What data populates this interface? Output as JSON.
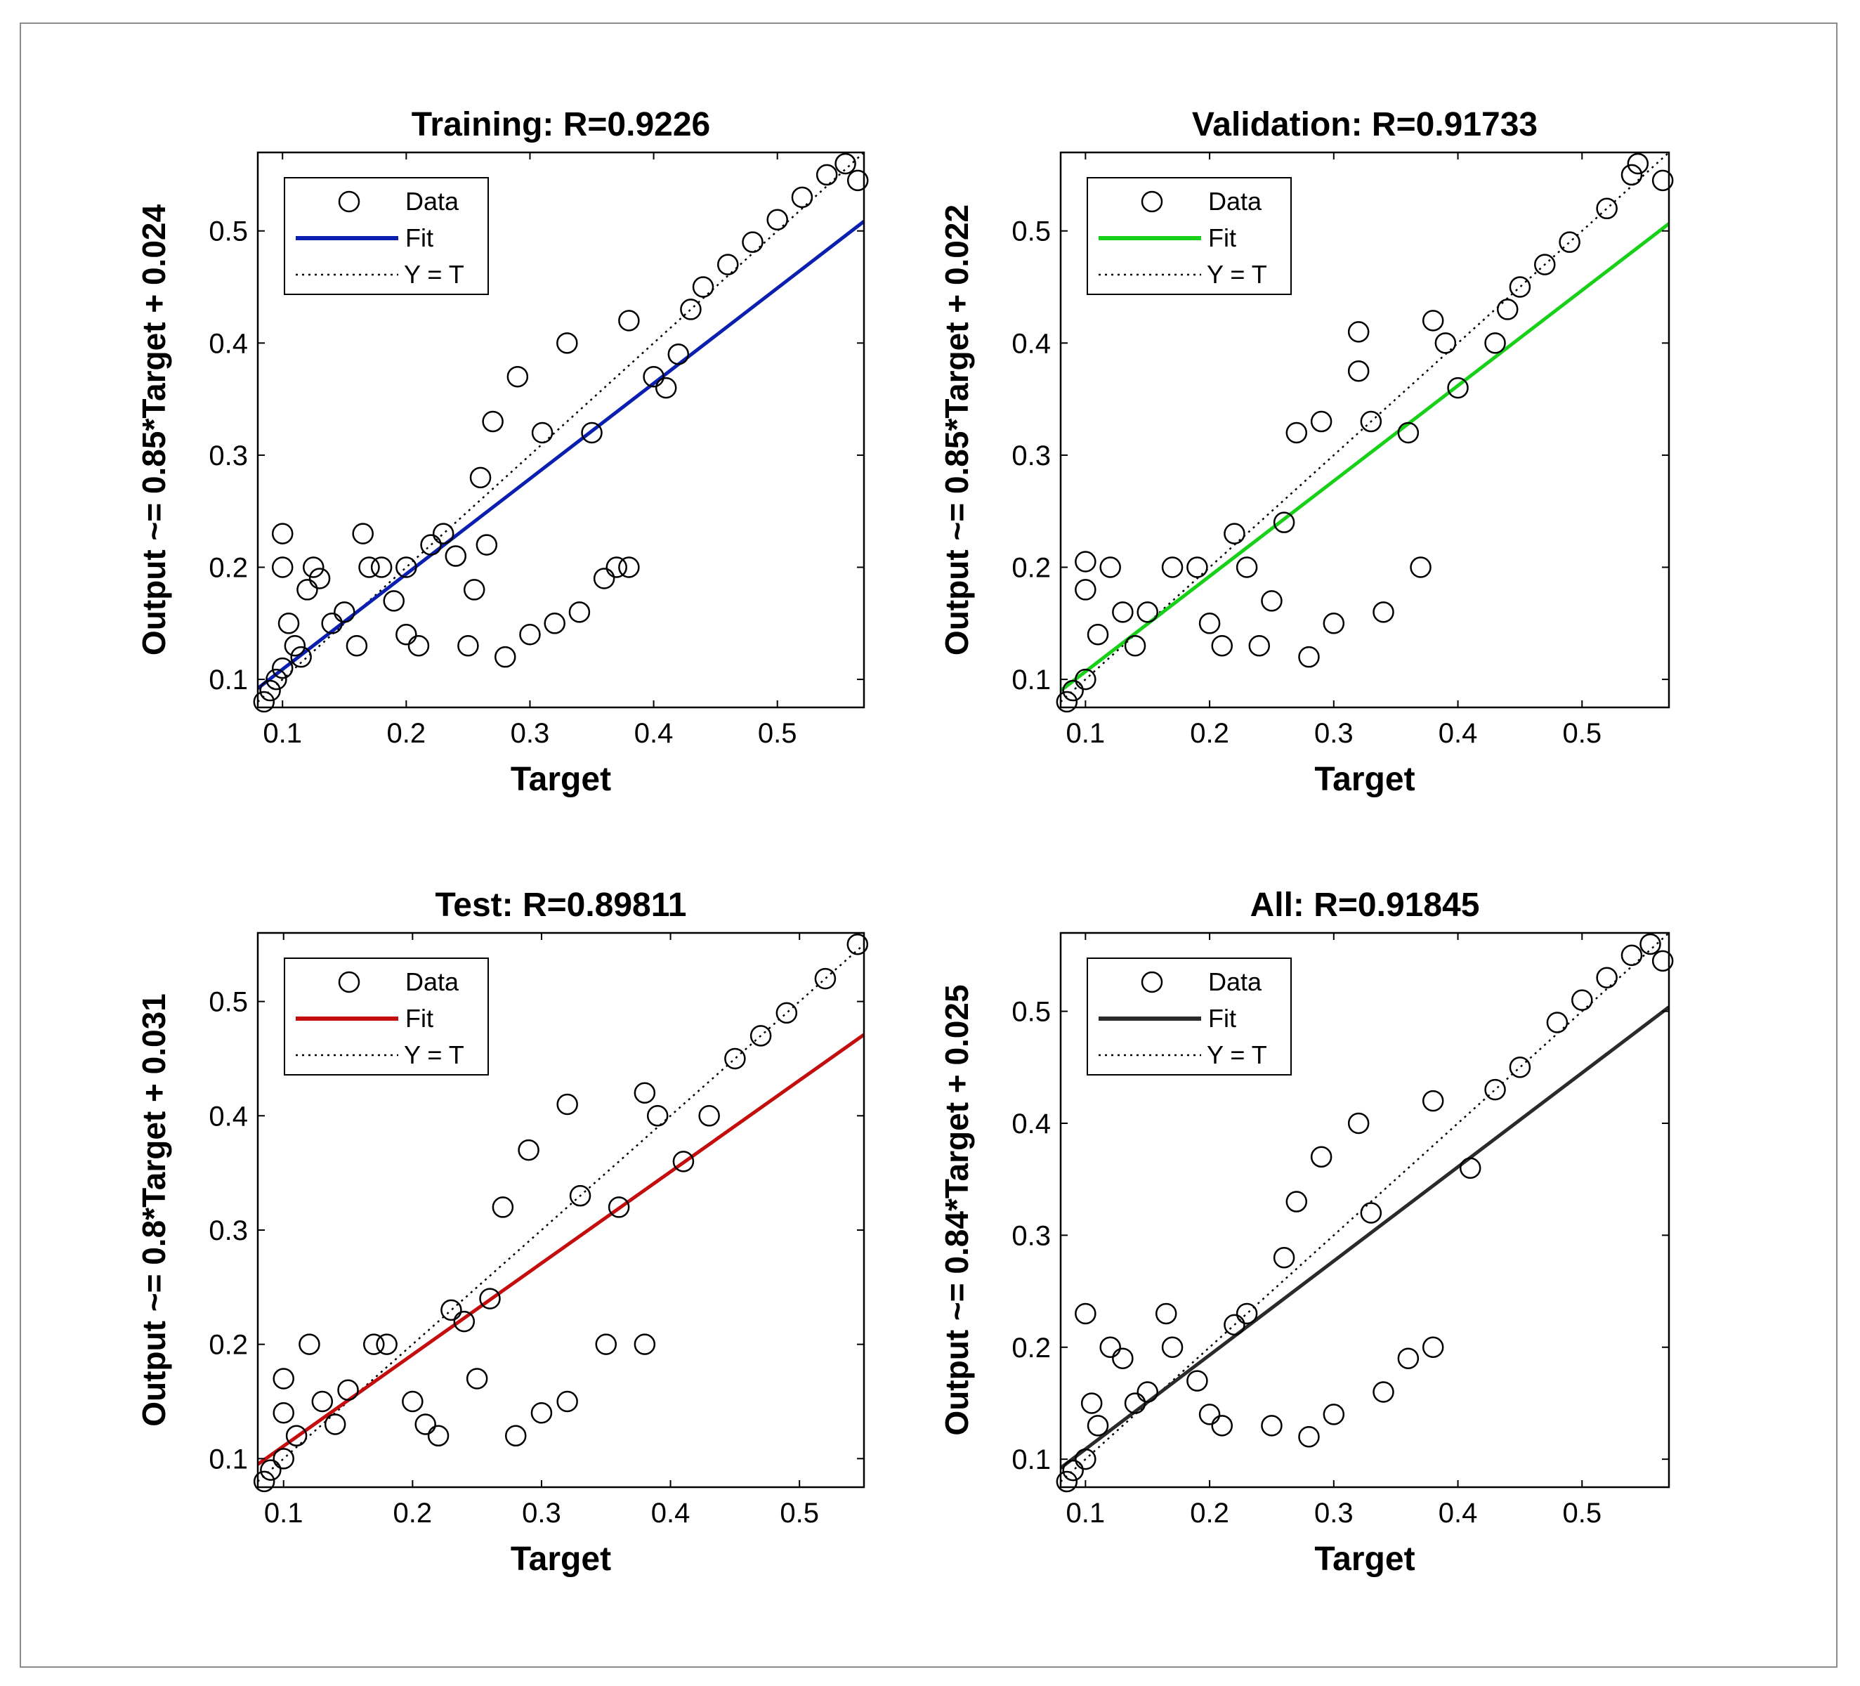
{
  "chart_data": [
    {
      "id": "training",
      "type": "scatter",
      "title": "Training: R=0.9226",
      "xlabel": "Target",
      "ylabel": "Output ~= 0.85*Target + 0.024",
      "xlim": [
        0.08,
        0.57
      ],
      "ylim": [
        0.075,
        0.57
      ],
      "xticks": [
        0.1,
        0.2,
        0.3,
        0.4,
        0.5
      ],
      "yticks": [
        0.1,
        0.2,
        0.3,
        0.4,
        0.5
      ],
      "fit": {
        "slope": 0.85,
        "intercept": 0.024,
        "color": "#0a1fb0"
      },
      "legend": {
        "entries": [
          "Data",
          "Fit",
          "Y = T"
        ],
        "placement": "top-left"
      },
      "series": [
        {
          "name": "Data",
          "points": [
            [
              0.085,
              0.08
            ],
            [
              0.09,
              0.09
            ],
            [
              0.095,
              0.1
            ],
            [
              0.1,
              0.11
            ],
            [
              0.1,
              0.23
            ],
            [
              0.1,
              0.2
            ],
            [
              0.105,
              0.15
            ],
            [
              0.11,
              0.13
            ],
            [
              0.115,
              0.12
            ],
            [
              0.12,
              0.18
            ],
            [
              0.125,
              0.2
            ],
            [
              0.13,
              0.19
            ],
            [
              0.14,
              0.15
            ],
            [
              0.15,
              0.16
            ],
            [
              0.16,
              0.13
            ],
            [
              0.165,
              0.23
            ],
            [
              0.17,
              0.2
            ],
            [
              0.18,
              0.2
            ],
            [
              0.19,
              0.17
            ],
            [
              0.2,
              0.14
            ],
            [
              0.21,
              0.13
            ],
            [
              0.2,
              0.2
            ],
            [
              0.22,
              0.22
            ],
            [
              0.23,
              0.23
            ],
            [
              0.24,
              0.21
            ],
            [
              0.25,
              0.13
            ],
            [
              0.255,
              0.18
            ],
            [
              0.26,
              0.28
            ],
            [
              0.265,
              0.22
            ],
            [
              0.27,
              0.33
            ],
            [
              0.28,
              0.12
            ],
            [
              0.29,
              0.37
            ],
            [
              0.3,
              0.14
            ],
            [
              0.31,
              0.32
            ],
            [
              0.32,
              0.15
            ],
            [
              0.33,
              0.4
            ],
            [
              0.34,
              0.16
            ],
            [
              0.35,
              0.32
            ],
            [
              0.36,
              0.19
            ],
            [
              0.37,
              0.2
            ],
            [
              0.38,
              0.2
            ],
            [
              0.38,
              0.42
            ],
            [
              0.4,
              0.37
            ],
            [
              0.41,
              0.36
            ],
            [
              0.42,
              0.39
            ],
            [
              0.43,
              0.43
            ],
            [
              0.44,
              0.45
            ],
            [
              0.46,
              0.47
            ],
            [
              0.48,
              0.49
            ],
            [
              0.5,
              0.51
            ],
            [
              0.52,
              0.53
            ],
            [
              0.54,
              0.55
            ],
            [
              0.555,
              0.56
            ],
            [
              0.565,
              0.545
            ]
          ]
        }
      ]
    },
    {
      "id": "validation",
      "type": "scatter",
      "title": "Validation: R=0.91733",
      "xlabel": "Target",
      "ylabel": "Output ~= 0.85*Target + 0.022",
      "xlim": [
        0.08,
        0.57
      ],
      "ylim": [
        0.075,
        0.57
      ],
      "xticks": [
        0.1,
        0.2,
        0.3,
        0.4,
        0.5
      ],
      "yticks": [
        0.1,
        0.2,
        0.3,
        0.4,
        0.5
      ],
      "fit": {
        "slope": 0.85,
        "intercept": 0.022,
        "color": "#18d018"
      },
      "legend": {
        "entries": [
          "Data",
          "Fit",
          "Y = T"
        ],
        "placement": "top-left"
      },
      "series": [
        {
          "name": "Data",
          "points": [
            [
              0.085,
              0.08
            ],
            [
              0.09,
              0.09
            ],
            [
              0.1,
              0.1
            ],
            [
              0.1,
              0.205
            ],
            [
              0.1,
              0.18
            ],
            [
              0.11,
              0.14
            ],
            [
              0.12,
              0.2
            ],
            [
              0.13,
              0.16
            ],
            [
              0.14,
              0.13
            ],
            [
              0.15,
              0.16
            ],
            [
              0.17,
              0.2
            ],
            [
              0.19,
              0.2
            ],
            [
              0.2,
              0.15
            ],
            [
              0.21,
              0.13
            ],
            [
              0.22,
              0.23
            ],
            [
              0.23,
              0.2
            ],
            [
              0.24,
              0.13
            ],
            [
              0.25,
              0.17
            ],
            [
              0.26,
              0.24
            ],
            [
              0.27,
              0.32
            ],
            [
              0.28,
              0.12
            ],
            [
              0.29,
              0.33
            ],
            [
              0.3,
              0.15
            ],
            [
              0.32,
              0.41
            ],
            [
              0.32,
              0.375
            ],
            [
              0.33,
              0.33
            ],
            [
              0.34,
              0.16
            ],
            [
              0.36,
              0.32
            ],
            [
              0.37,
              0.2
            ],
            [
              0.38,
              0.42
            ],
            [
              0.39,
              0.4
            ],
            [
              0.4,
              0.36
            ],
            [
              0.43,
              0.4
            ],
            [
              0.44,
              0.43
            ],
            [
              0.45,
              0.45
            ],
            [
              0.47,
              0.47
            ],
            [
              0.49,
              0.49
            ],
            [
              0.52,
              0.52
            ],
            [
              0.54,
              0.55
            ],
            [
              0.545,
              0.56
            ],
            [
              0.565,
              0.545
            ]
          ]
        }
      ]
    },
    {
      "id": "test",
      "type": "scatter",
      "title": "Test: R=0.89811",
      "xlabel": "Target",
      "ylabel": "Output ~= 0.8*Target + 0.031",
      "xlim": [
        0.08,
        0.55
      ],
      "ylim": [
        0.075,
        0.56
      ],
      "xticks": [
        0.1,
        0.2,
        0.3,
        0.4,
        0.5
      ],
      "yticks": [
        0.1,
        0.2,
        0.3,
        0.4,
        0.5
      ],
      "fit": {
        "slope": 0.8,
        "intercept": 0.031,
        "color": "#c40e0e"
      },
      "legend": {
        "entries": [
          "Data",
          "Fit",
          "Y = T"
        ],
        "placement": "top-left"
      },
      "series": [
        {
          "name": "Data",
          "points": [
            [
              0.085,
              0.08
            ],
            [
              0.09,
              0.09
            ],
            [
              0.1,
              0.1
            ],
            [
              0.1,
              0.14
            ],
            [
              0.1,
              0.17
            ],
            [
              0.11,
              0.12
            ],
            [
              0.12,
              0.2
            ],
            [
              0.13,
              0.15
            ],
            [
              0.14,
              0.13
            ],
            [
              0.15,
              0.16
            ],
            [
              0.17,
              0.2
            ],
            [
              0.18,
              0.2
            ],
            [
              0.2,
              0.15
            ],
            [
              0.21,
              0.13
            ],
            [
              0.22,
              0.12
            ],
            [
              0.23,
              0.23
            ],
            [
              0.24,
              0.22
            ],
            [
              0.25,
              0.17
            ],
            [
              0.26,
              0.24
            ],
            [
              0.27,
              0.32
            ],
            [
              0.28,
              0.12
            ],
            [
              0.29,
              0.37
            ],
            [
              0.3,
              0.14
            ],
            [
              0.32,
              0.15
            ],
            [
              0.32,
              0.41
            ],
            [
              0.33,
              0.33
            ],
            [
              0.35,
              0.2
            ],
            [
              0.36,
              0.32
            ],
            [
              0.38,
              0.2
            ],
            [
              0.38,
              0.42
            ],
            [
              0.39,
              0.4
            ],
            [
              0.41,
              0.36
            ],
            [
              0.43,
              0.4
            ],
            [
              0.45,
              0.45
            ],
            [
              0.47,
              0.47
            ],
            [
              0.49,
              0.49
            ],
            [
              0.52,
              0.52
            ],
            [
              0.545,
              0.55
            ]
          ]
        }
      ]
    },
    {
      "id": "all",
      "type": "scatter",
      "title": "All: R=0.91845",
      "xlabel": "Target",
      "ylabel": "Output ~= 0.84*Target + 0.025",
      "xlim": [
        0.08,
        0.57
      ],
      "ylim": [
        0.075,
        0.57
      ],
      "xticks": [
        0.1,
        0.2,
        0.3,
        0.4,
        0.5
      ],
      "yticks": [
        0.1,
        0.2,
        0.3,
        0.4,
        0.5
      ],
      "fit": {
        "slope": 0.84,
        "intercept": 0.025,
        "color": "#2a2a2a"
      },
      "legend": {
        "entries": [
          "Data",
          "Fit",
          "Y = T"
        ],
        "placement": "top-left"
      },
      "series": [
        {
          "name": "Data",
          "points": [
            [
              0.085,
              0.08
            ],
            [
              0.09,
              0.09
            ],
            [
              0.1,
              0.1
            ],
            [
              0.1,
              0.23
            ],
            [
              0.105,
              0.15
            ],
            [
              0.11,
              0.13
            ],
            [
              0.12,
              0.2
            ],
            [
              0.13,
              0.19
            ],
            [
              0.14,
              0.15
            ],
            [
              0.15,
              0.16
            ],
            [
              0.165,
              0.23
            ],
            [
              0.17,
              0.2
            ],
            [
              0.19,
              0.17
            ],
            [
              0.2,
              0.14
            ],
            [
              0.21,
              0.13
            ],
            [
              0.22,
              0.22
            ],
            [
              0.23,
              0.23
            ],
            [
              0.25,
              0.13
            ],
            [
              0.26,
              0.28
            ],
            [
              0.27,
              0.33
            ],
            [
              0.28,
              0.12
            ],
            [
              0.29,
              0.37
            ],
            [
              0.3,
              0.14
            ],
            [
              0.32,
              0.4
            ],
            [
              0.33,
              0.32
            ],
            [
              0.34,
              0.16
            ],
            [
              0.36,
              0.19
            ],
            [
              0.38,
              0.2
            ],
            [
              0.38,
              0.42
            ],
            [
              0.41,
              0.36
            ],
            [
              0.43,
              0.43
            ],
            [
              0.45,
              0.45
            ],
            [
              0.48,
              0.49
            ],
            [
              0.5,
              0.51
            ],
            [
              0.52,
              0.53
            ],
            [
              0.54,
              0.55
            ],
            [
              0.555,
              0.56
            ],
            [
              0.565,
              0.545
            ]
          ]
        }
      ]
    }
  ]
}
